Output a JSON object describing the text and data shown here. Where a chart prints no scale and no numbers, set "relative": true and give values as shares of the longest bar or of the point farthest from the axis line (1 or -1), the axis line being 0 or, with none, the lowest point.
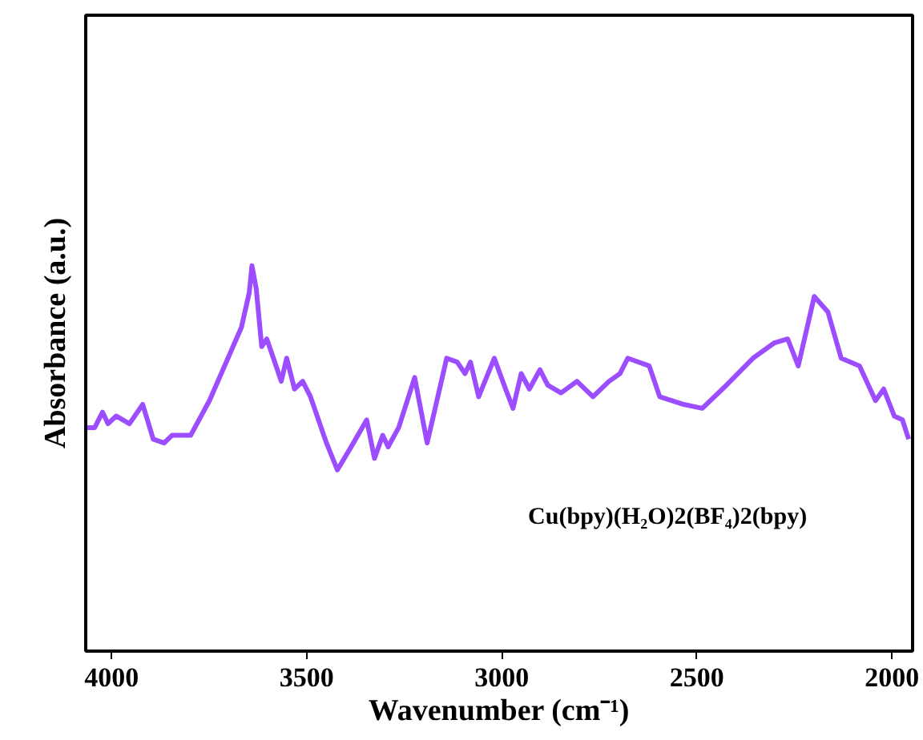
{
  "chart_data": {
    "type": "line",
    "xlabel": "Wavenumber (cm⁻¹)",
    "ylabel": "Absorbance (a.u.)",
    "annotations": [
      "Cu(bpy)(H₂O)2(BF₄)2(bpy)"
    ],
    "relative": true,
    "xlim": [
      4066,
      1947
    ],
    "xticks": [
      4000,
      3500,
      3000,
      2500,
      2000
    ],
    "tick_labels": "x",
    "grid": false,
    "marker": "none",
    "line_style": "solid",
    "series": [
      {
        "color": "#9b4dff",
        "x": [
          4064,
          4043,
          4023,
          4009,
          3988,
          3954,
          3920,
          3893,
          3865,
          3845,
          3797,
          3749,
          3667,
          3647,
          3640,
          3629,
          3615,
          3602,
          3585,
          3565,
          3551,
          3531,
          3510,
          3490,
          3449,
          3421,
          3380,
          3346,
          3326,
          3305,
          3291,
          3264,
          3223,
          3191,
          3141,
          3114,
          3094,
          3080,
          3059,
          3019,
          2990,
          2971,
          2950,
          2929,
          2902,
          2882,
          2848,
          2807,
          2766,
          2725,
          2697,
          2677,
          2622,
          2595,
          2533,
          2486,
          2424,
          2356,
          2301,
          2267,
          2240,
          2199,
          2164,
          2130,
          2083,
          2042,
          2021,
          1994,
          1973,
          1957
        ],
        "values": [
          0.58,
          0.58,
          0.62,
          0.59,
          0.61,
          0.59,
          0.64,
          0.55,
          0.54,
          0.56,
          0.56,
          0.65,
          0.84,
          0.93,
          1.0,
          0.94,
          0.79,
          0.81,
          0.76,
          0.7,
          0.76,
          0.68,
          0.7,
          0.66,
          0.54,
          0.47,
          0.54,
          0.6,
          0.5,
          0.56,
          0.53,
          0.58,
          0.71,
          0.54,
          0.76,
          0.75,
          0.72,
          0.75,
          0.66,
          0.76,
          0.68,
          0.63,
          0.72,
          0.68,
          0.73,
          0.69,
          0.67,
          0.7,
          0.66,
          0.7,
          0.72,
          0.76,
          0.74,
          0.66,
          0.64,
          0.63,
          0.69,
          0.76,
          0.8,
          0.81,
          0.74,
          0.92,
          0.88,
          0.76,
          0.74,
          0.65,
          0.68,
          0.61,
          0.6,
          0.55
        ]
      }
    ]
  }
}
